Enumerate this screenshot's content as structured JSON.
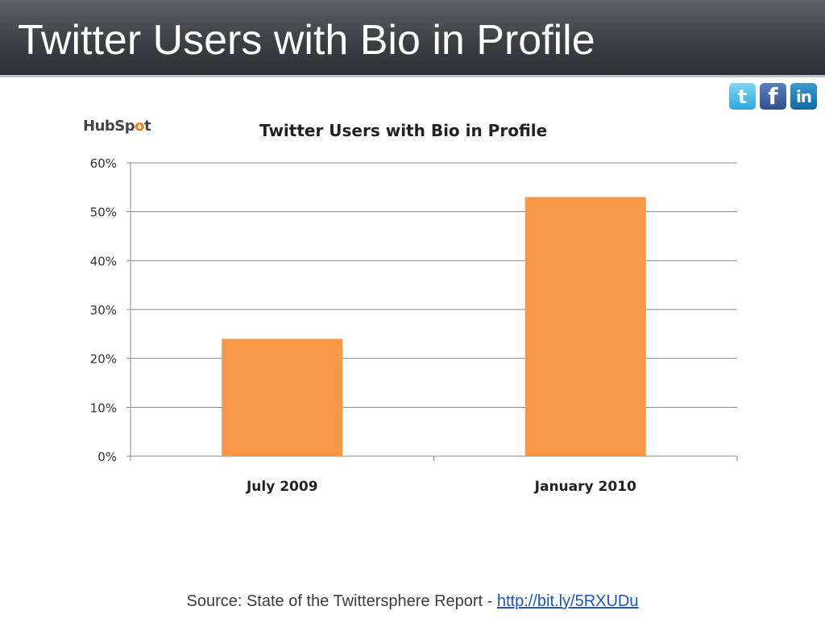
{
  "slide": {
    "title": "Twitter Users with Bio in Profile"
  },
  "social": {
    "icons": [
      "twitter-icon",
      "facebook-icon",
      "linkedin-icon"
    ],
    "twitter_glyph": "t",
    "facebook_glyph": "f",
    "linkedin_glyph": "in"
  },
  "logo": {
    "text_before": "HubSp",
    "text_spot": "o",
    "text_after": "t"
  },
  "chart_data": {
    "type": "bar",
    "title": "Twitter Users with Bio in Profile",
    "categories": [
      "July 2009",
      "January 2010"
    ],
    "values": [
      24,
      53
    ],
    "ylim": [
      0,
      60
    ],
    "yticks": [
      0,
      10,
      20,
      30,
      40,
      50,
      60
    ],
    "ytick_labels": [
      "0%",
      "10%",
      "20%",
      "30%",
      "40%",
      "50%",
      "60%"
    ],
    "xlabel": "",
    "ylabel": "",
    "grid": true,
    "bar_color": "#F79646"
  },
  "footer": {
    "source_text": "Source: State of the Twittersphere Report - ",
    "source_link": "http://bit.ly/5RXUDu"
  },
  "colors": {
    "title_bar": "#3c3f43",
    "link": "#1a56c9"
  }
}
